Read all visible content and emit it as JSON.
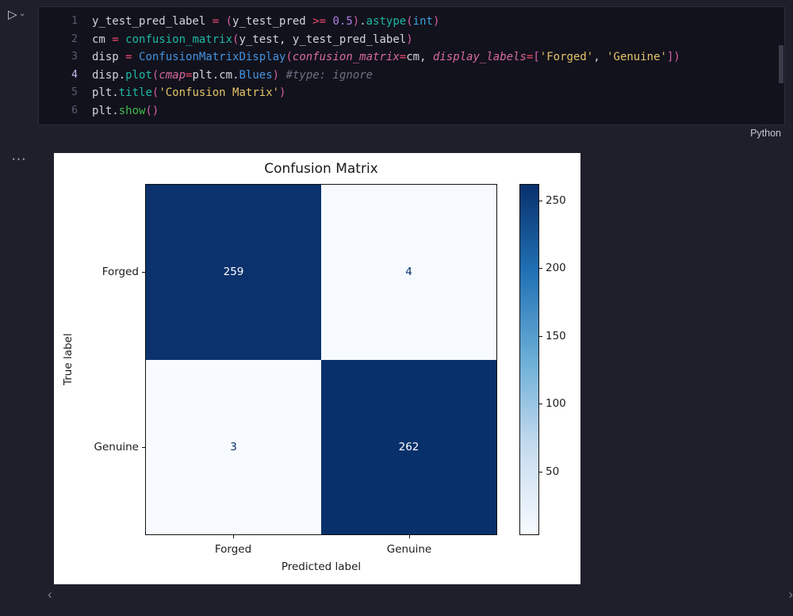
{
  "icons": {
    "run": "▷",
    "run_dropdown": "⌄",
    "more_actions": "⋯",
    "scroll_left": "‹",
    "scroll_right": "›"
  },
  "cell": {
    "language": "Python",
    "lines": [
      {
        "num": "1",
        "active": false,
        "tokens": [
          {
            "t": "y_test_pred_label ",
            "c": "v"
          },
          {
            "t": "= ",
            "c": "op"
          },
          {
            "t": "(",
            "c": "pa"
          },
          {
            "t": "y_test_pred ",
            "c": "v"
          },
          {
            "t": ">= ",
            "c": "op"
          },
          {
            "t": "0.5",
            "c": "num"
          },
          {
            "t": ")",
            "c": "pa"
          },
          {
            "t": ".",
            "c": "v"
          },
          {
            "t": "astype",
            "c": "fn"
          },
          {
            "t": "(",
            "c": "pa"
          },
          {
            "t": "int",
            "c": "type"
          },
          {
            "t": ")",
            "c": "pa"
          }
        ]
      },
      {
        "num": "2",
        "active": false,
        "tokens": [
          {
            "t": "cm ",
            "c": "v"
          },
          {
            "t": "= ",
            "c": "op"
          },
          {
            "t": "confusion_matrix",
            "c": "fn"
          },
          {
            "t": "(",
            "c": "pa"
          },
          {
            "t": "y_test",
            "c": "v"
          },
          {
            "t": ", ",
            "c": "v"
          },
          {
            "t": "y_test_pred_label",
            "c": "v"
          },
          {
            "t": ")",
            "c": "pa"
          }
        ]
      },
      {
        "num": "3",
        "active": false,
        "tokens": [
          {
            "t": "disp ",
            "c": "v"
          },
          {
            "t": "= ",
            "c": "op"
          },
          {
            "t": "ConfusionMatrixDisplay",
            "c": "cls"
          },
          {
            "t": "(",
            "c": "pa"
          },
          {
            "t": "confusion_matrix",
            "c": "param"
          },
          {
            "t": "=",
            "c": "op"
          },
          {
            "t": "cm",
            "c": "v"
          },
          {
            "t": ", ",
            "c": "v"
          },
          {
            "t": "display_labels",
            "c": "param"
          },
          {
            "t": "=",
            "c": "op"
          },
          {
            "t": "[",
            "c": "pa"
          },
          {
            "t": "'Forged'",
            "c": "str"
          },
          {
            "t": ", ",
            "c": "v"
          },
          {
            "t": "'Genuine'",
            "c": "str"
          },
          {
            "t": "]",
            "c": "pa"
          },
          {
            "t": ")",
            "c": "pa"
          }
        ]
      },
      {
        "num": "4",
        "active": true,
        "tokens": [
          {
            "t": "disp",
            "c": "v"
          },
          {
            "t": ".",
            "c": "v"
          },
          {
            "t": "plot",
            "c": "fn"
          },
          {
            "t": "(",
            "c": "pa"
          },
          {
            "t": "cmap",
            "c": "param"
          },
          {
            "t": "=",
            "c": "op"
          },
          {
            "t": "plt",
            "c": "v"
          },
          {
            "t": ".",
            "c": "v"
          },
          {
            "t": "cm",
            "c": "v"
          },
          {
            "t": ".",
            "c": "v"
          },
          {
            "t": "Blues",
            "c": "cls"
          },
          {
            "t": ")",
            "c": "pa"
          },
          {
            "t": " ",
            "c": "v"
          },
          {
            "t": "#type: ignore",
            "c": "cmt"
          }
        ]
      },
      {
        "num": "5",
        "active": false,
        "tokens": [
          {
            "t": "plt",
            "c": "v"
          },
          {
            "t": ".",
            "c": "v"
          },
          {
            "t": "title",
            "c": "fn"
          },
          {
            "t": "(",
            "c": "pa"
          },
          {
            "t": "'Confusion Matrix'",
            "c": "str"
          },
          {
            "t": ")",
            "c": "pa"
          }
        ]
      },
      {
        "num": "6",
        "active": false,
        "tokens": [
          {
            "t": "plt",
            "c": "v"
          },
          {
            "t": ".",
            "c": "v"
          },
          {
            "t": "show",
            "c": "grn"
          },
          {
            "t": "(",
            "c": "pa"
          },
          {
            "t": ")",
            "c": "pa"
          }
        ]
      }
    ]
  },
  "chart_data": {
    "type": "heatmap",
    "title": "Confusion Matrix",
    "xlabel": "Predicted label",
    "ylabel": "True label",
    "categories": [
      "Forged",
      "Genuine"
    ],
    "matrix": [
      [
        259,
        4
      ],
      [
        3,
        262
      ]
    ],
    "vmin": 3,
    "vmax": 262,
    "colormap": "Blues",
    "colormap_stops": [
      "#f7fbff",
      "#c6dbef",
      "#6baed6",
      "#2171b5",
      "#08306b"
    ],
    "colorbar_ticks": [
      50,
      100,
      150,
      200,
      250
    ],
    "legend_position": "colorbar-right",
    "grid": false
  }
}
